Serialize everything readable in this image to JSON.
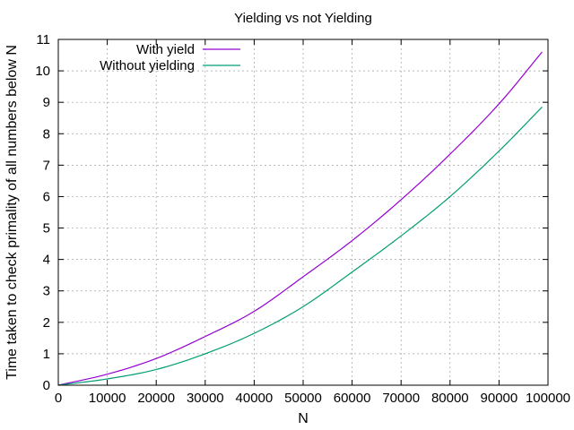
{
  "chart_data": {
    "type": "line",
    "title": "Yielding vs not Yielding",
    "xlabel": "N",
    "ylabel": "Time taken to check primality of all numbers below N",
    "xlim": [
      0,
      100000
    ],
    "ylim": [
      0,
      11
    ],
    "x_ticks": [
      0,
      10000,
      20000,
      30000,
      40000,
      50000,
      60000,
      70000,
      80000,
      90000,
      100000
    ],
    "y_ticks": [
      0,
      1,
      2,
      3,
      4,
      5,
      6,
      7,
      8,
      9,
      10,
      11
    ],
    "grid": true,
    "legend_position": "top-left",
    "series": [
      {
        "name": "With yield",
        "color": "#9400d3",
        "x": [
          0,
          10000,
          20000,
          30000,
          40000,
          50000,
          60000,
          70000,
          80000,
          90000,
          98800
        ],
        "values": [
          0.0,
          0.35,
          0.85,
          1.55,
          2.35,
          3.45,
          4.6,
          5.9,
          7.35,
          8.95,
          10.6
        ]
      },
      {
        "name": "Without yielding",
        "color": "#009e73",
        "x": [
          0,
          10000,
          20000,
          30000,
          40000,
          50000,
          60000,
          70000,
          80000,
          90000,
          98800
        ],
        "values": [
          0.0,
          0.2,
          0.5,
          1.0,
          1.65,
          2.5,
          3.6,
          4.75,
          6.0,
          7.45,
          8.85
        ]
      }
    ]
  }
}
